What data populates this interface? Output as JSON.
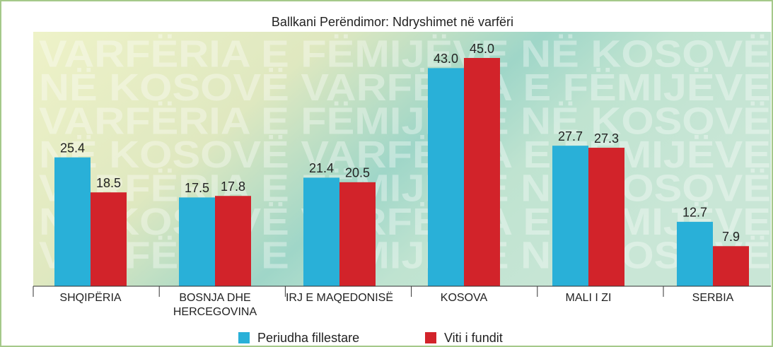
{
  "chart_data": {
    "type": "bar",
    "title": "Ballkani Perëndimor: Ndryshimet në varfëri",
    "watermark": [
      "VARFËRIA E FËMIJËVE NË KOSOVË",
      "NË KOSOVË VARFËRIA E FËMIJËVE",
      "VARFËRIA E FËMIJËVE NË KOSOVË",
      "NË KOSOVË VARFËRIA E FËMIJËVE",
      "VARFËRIA E FËMIJËVE NË KOSOVË",
      "NË KOSOVË VARFËRIA E FËMIJËVE",
      "VARFËRIA E FËMIJËVE NË KOSOVË"
    ],
    "categories": [
      "SHQIPËRIA",
      "BOSNJA DHE HERCEGOVINA",
      "IRJ E MAQEDONISË",
      "KOSOVA",
      "MALI I ZI",
      "SERBIA"
    ],
    "series": [
      {
        "name": "Periudha fillestare",
        "color": "#29b0d8",
        "values": [
          25.4,
          17.5,
          21.4,
          43.0,
          27.7,
          12.7
        ],
        "value_labels": [
          "25.4",
          "17.5",
          "21.4",
          "43.0",
          "27.7",
          "12.7"
        ]
      },
      {
        "name": "Viti i fundit",
        "color": "#d2232a",
        "values": [
          18.5,
          17.8,
          20.5,
          45.0,
          27.3,
          7.9
        ],
        "value_labels": [
          "18.5",
          "17.8",
          "20.5",
          "45.0",
          "27.3",
          "7.9"
        ]
      }
    ],
    "ylim": [
      0,
      45
    ]
  }
}
